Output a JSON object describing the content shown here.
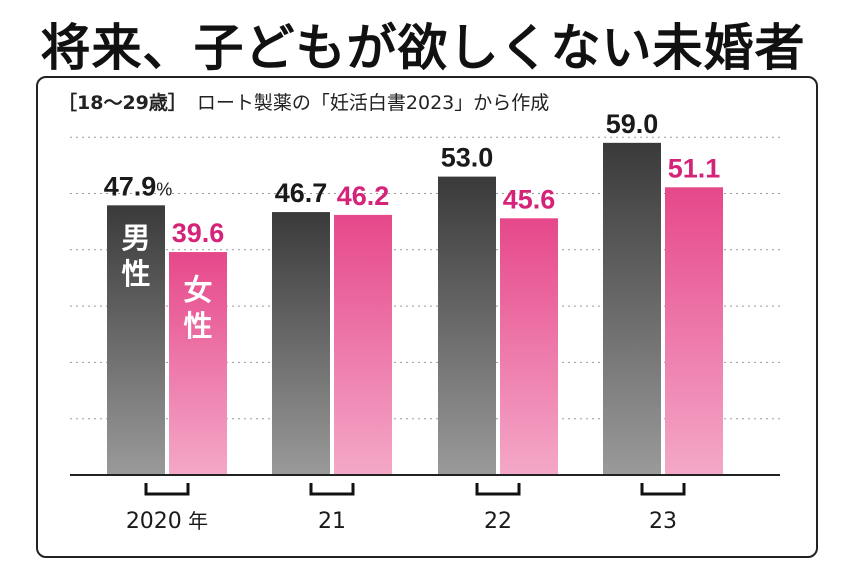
{
  "title": "将来、子どもが欲しくない未婚者",
  "subtitle": {
    "age_range": "［18〜29歳］",
    "source": "ロート製薬の「妊活白書2023」から作成"
  },
  "colors": {
    "male": "#4a4a4a",
    "female": "#e8508f",
    "female_label": "#d6237a"
  },
  "chart_data": {
    "type": "bar",
    "categories": [
      "2020",
      "21",
      "22",
      "23"
    ],
    "year_suffix": "年",
    "series": [
      {
        "name": "男性",
        "values": [
          47.9,
          46.7,
          53.0,
          59.0
        ]
      },
      {
        "name": "女性",
        "values": [
          39.6,
          46.2,
          45.6,
          51.1
        ]
      }
    ],
    "value_labels": {
      "男性": [
        "47.9",
        "46.7",
        "53.0",
        "59.0"
      ],
      "女性": [
        "39.6",
        "46.2",
        "45.6",
        "51.1"
      ]
    },
    "unit_label": "%",
    "ylim": [
      0,
      70
    ],
    "grid": true,
    "legend": "in-bar"
  }
}
